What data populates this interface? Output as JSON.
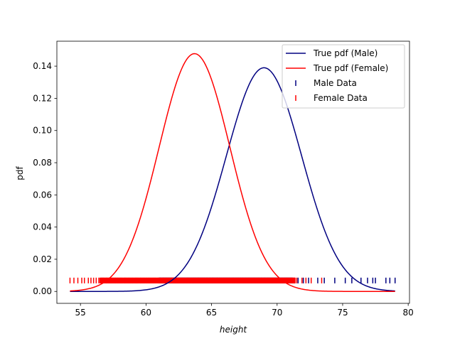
{
  "chart_data": {
    "type": "line",
    "title": "",
    "xlabel": "height",
    "ylabel": "pdf",
    "xlim": [
      53.2,
      80.1
    ],
    "ylim": [
      -0.0074,
      0.1555
    ],
    "xticks": [
      55,
      60,
      65,
      70,
      75,
      80
    ],
    "yticks": [
      0.0,
      0.02,
      0.04,
      0.06,
      0.08,
      0.1,
      0.12,
      0.14
    ],
    "ytick_labels": [
      "0.00",
      "0.02",
      "0.04",
      "0.06",
      "0.08",
      "0.10",
      "0.12",
      "0.14"
    ],
    "series": [
      {
        "name": "True pdf (Male)",
        "kind": "line",
        "color": "#000080",
        "mean": 69.0,
        "std": 2.87,
        "x_range": [
          54.2,
          79.0
        ]
      },
      {
        "name": "True pdf (Female)",
        "kind": "line",
        "color": "#ff0000",
        "mean": 63.7,
        "std": 2.7,
        "x_range": [
          54.2,
          79.0
        ]
      },
      {
        "name": "Male Data",
        "kind": "rug",
        "color": "#000080",
        "y": 0.0068,
        "range": [
          61.0,
          79.0
        ],
        "sparse_points": [
          71.3,
          71.6,
          72.0,
          72.4,
          73.1,
          73.6,
          74.4,
          75.2,
          75.7,
          76.4,
          76.9,
          77.3,
          77.5,
          78.3,
          78.6,
          79.0
        ]
      },
      {
        "name": "Female Data",
        "kind": "rug",
        "color": "#ff0000",
        "y": 0.0068,
        "range": [
          54.2,
          73.4
        ],
        "sparse_points": [
          54.2,
          54.5,
          54.8,
          55.1,
          55.3,
          55.6,
          55.8,
          56.0,
          56.2,
          56.4,
          71.5,
          71.9,
          72.2,
          72.6,
          73.4
        ]
      }
    ],
    "legend": {
      "position": "top-right",
      "entries": [
        "True pdf (Male)",
        "True pdf (Female)",
        "Male Data",
        "Female Data"
      ]
    }
  }
}
